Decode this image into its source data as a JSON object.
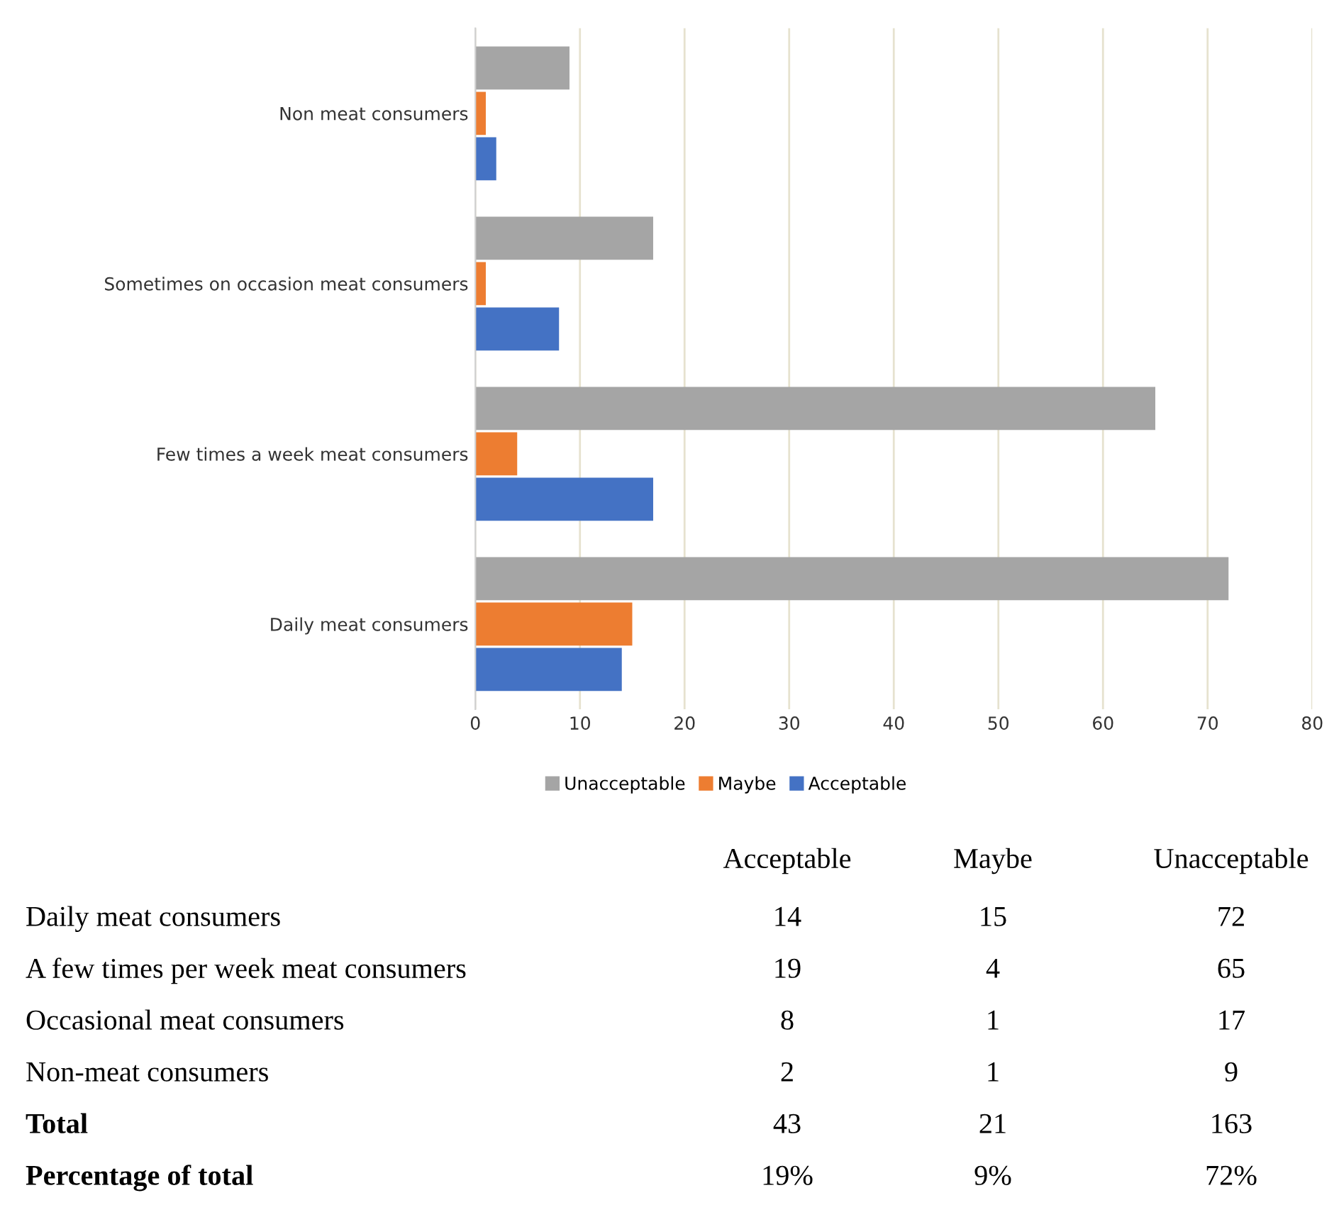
{
  "chart_data": [
    {
      "type": "bar",
      "orientation": "horizontal",
      "categories": [
        "Non meat consumers",
        "Sometimes on occasion meat consumers",
        "Few times a week meat consumers",
        "Daily meat consumers"
      ],
      "series": [
        {
          "name": "Unacceptable",
          "color": "#a5a5a5",
          "values": [
            9,
            17,
            65,
            72
          ]
        },
        {
          "name": "Maybe",
          "color": "#ed7d31",
          "values": [
            1,
            1,
            4,
            15
          ]
        },
        {
          "name": "Acceptable",
          "color": "#4472c4",
          "values": [
            2,
            8,
            17,
            14
          ]
        }
      ],
      "xlim": [
        0,
        80
      ],
      "xticks": [
        0,
        10,
        20,
        30,
        40,
        50,
        60,
        70,
        80
      ],
      "grid": "x",
      "legend": "bottom"
    },
    {
      "type": "other",
      "annotations": [
        "Acceptable",
        "Maybe",
        "Unacceptable",
        "Daily meat consumers",
        "14",
        "15",
        "72",
        "A few times per week meat consumers",
        "19",
        "4",
        "65",
        "Occasional meat consumers",
        "8",
        "1",
        "17",
        "Non-meat consumers",
        "2",
        "1",
        "9",
        "Total",
        "43",
        "21",
        "163",
        "Percentage of total",
        "19%",
        "9%",
        "72%"
      ]
    }
  ]
}
